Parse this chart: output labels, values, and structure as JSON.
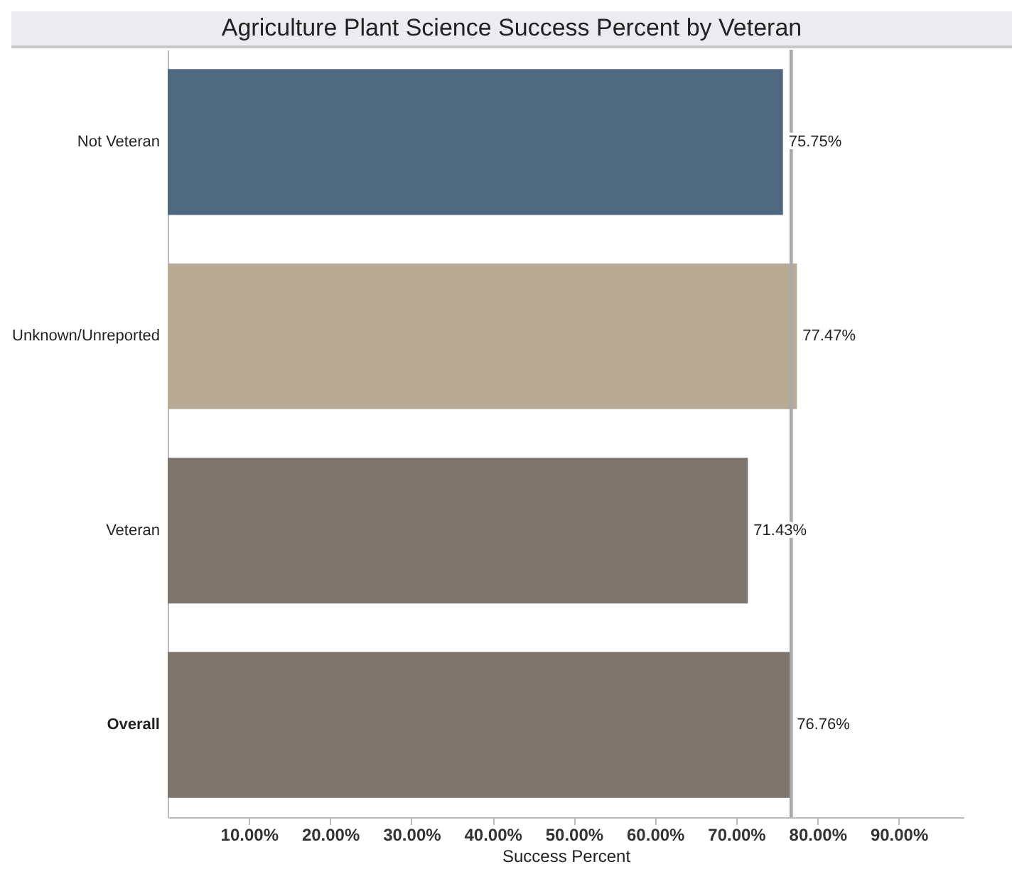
{
  "chart_data": {
    "type": "bar",
    "orientation": "horizontal",
    "title": "Agriculture Plant Science Success Percent by Veteran",
    "xlabel": "Success Percent",
    "categories": [
      "Not Veteran",
      "Unknown/Unreported",
      "Veteran",
      "Overall"
    ],
    "values": [
      75.75,
      77.47,
      71.43,
      76.76
    ],
    "colors": [
      "#4e6880",
      "#b9aa96",
      "#7d756b",
      "#7d756b"
    ],
    "value_labels": [
      "75.75%",
      "77.47%",
      "71.43%",
      "76.76%"
    ],
    "xlim": [
      0,
      98
    ],
    "xticks": [
      {
        "value": 10,
        "label": "10.00%"
      },
      {
        "value": 20,
        "label": "20.00%"
      },
      {
        "value": 30,
        "label": "30.00%"
      },
      {
        "value": 40,
        "label": "40.00%"
      },
      {
        "value": 50,
        "label": "50.00%"
      },
      {
        "value": 60,
        "label": "60.00%"
      },
      {
        "value": 70,
        "label": "70.00%"
      },
      {
        "value": 80,
        "label": "80.00%"
      },
      {
        "value": 90,
        "label": "90.00%"
      }
    ],
    "ref_lines": [
      {
        "axis": "x",
        "value": 76.76,
        "color": "#aaaaaa"
      }
    ],
    "grid": false
  }
}
